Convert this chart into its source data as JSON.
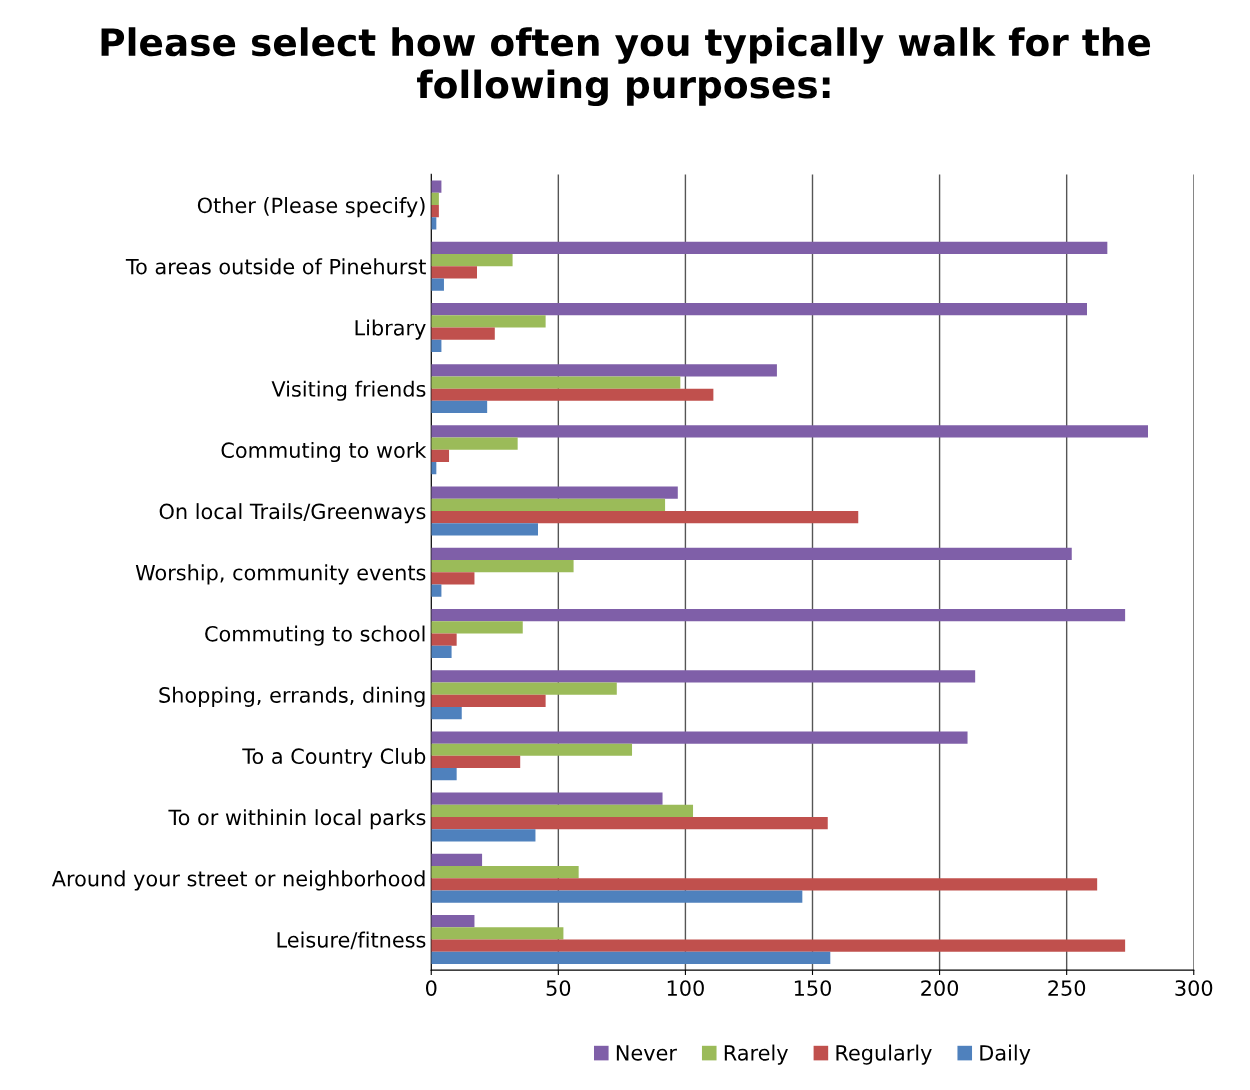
{
  "chart_data": {
    "type": "bar",
    "orientation": "horizontal",
    "title": "Please select how often you typically walk for the following purposes:",
    "categories": [
      "Other (Please specify)",
      "To areas outside of Pinehurst",
      "Library",
      "Visiting friends",
      "Commuting to work",
      "On local Trails/Greenways",
      "Worship, community events",
      "Commuting to school",
      "Shopping, errands, dining",
      "To a Country Club",
      "To or withinin local parks",
      "Around your street or neighborhood",
      "Leisure/fitness"
    ],
    "series": [
      {
        "name": "Never",
        "color": "#7f5fa8",
        "values": [
          4,
          266,
          258,
          136,
          282,
          97,
          252,
          273,
          214,
          211,
          91,
          20,
          17
        ]
      },
      {
        "name": "Rarely",
        "color": "#9bbb59",
        "values": [
          3,
          32,
          45,
          98,
          34,
          92,
          56,
          36,
          73,
          79,
          103,
          58,
          52
        ]
      },
      {
        "name": "Regularly",
        "color": "#c0504d",
        "values": [
          3,
          18,
          25,
          111,
          7,
          168,
          17,
          10,
          45,
          35,
          156,
          262,
          273
        ]
      },
      {
        "name": "Daily",
        "color": "#4f81bd",
        "values": [
          2,
          5,
          4,
          22,
          2,
          42,
          4,
          8,
          12,
          10,
          41,
          146,
          157
        ]
      }
    ],
    "xlim": [
      0,
      300
    ],
    "xticks": [
      0,
      50,
      100,
      150,
      200,
      250,
      300
    ],
    "grid": "x",
    "legend": "bottom"
  }
}
